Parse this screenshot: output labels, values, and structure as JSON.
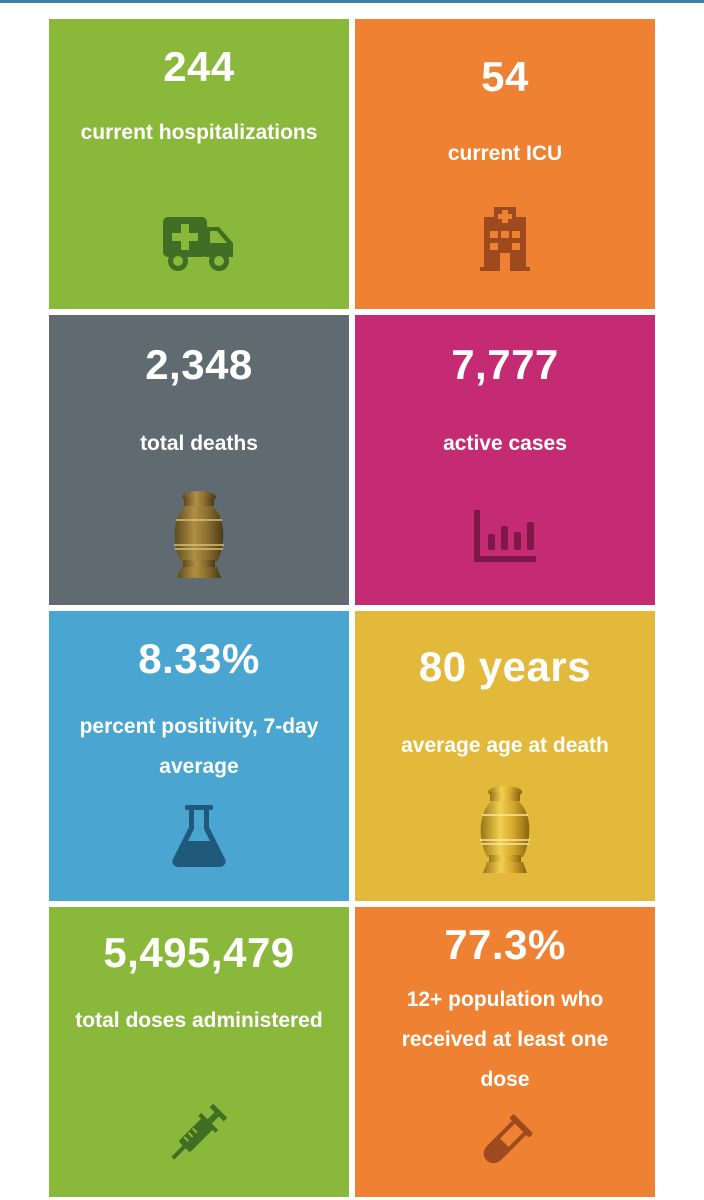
{
  "colors": {
    "green": "#8ab83a",
    "orange": "#ee8232",
    "gray": "#606a71",
    "magenta": "#c42b72",
    "blue": "#4aa6d0",
    "yellow": "#e3b93b",
    "green_icon": "#3f6e24",
    "orange_icon": "#9c4a1e",
    "magenta_icon": "#7f1848",
    "blue_icon": "#1f5a7b",
    "yellow_icon": "#c79a2a"
  },
  "tiles": [
    {
      "value": "244",
      "label": "current hospitalizations",
      "icon": "ambulance-icon",
      "color": "#8ab83a"
    },
    {
      "value": "54",
      "label": "current ICU",
      "icon": "hospital-icon",
      "color": "#ee8232"
    },
    {
      "value": "2,348",
      "label": "total deaths",
      "icon": "urn-icon",
      "color": "#606a71"
    },
    {
      "value": "7,777",
      "label": "active cases",
      "icon": "bar-chart-icon",
      "color": "#c42b72"
    },
    {
      "value": "8.33%",
      "label": "percent positivity, 7-day average",
      "icon": "flask-icon",
      "color": "#4aa6d0"
    },
    {
      "value": "80 years",
      "label": "average age at death",
      "icon": "urn-icon",
      "color": "#e3b93b"
    },
    {
      "value": "5,495,479",
      "label": "total doses administered",
      "icon": "syringe-icon",
      "color": "#8ab83a"
    },
    {
      "value": "77.3%",
      "label": "12+ population who received at least one dose",
      "icon": "test-tube-icon",
      "color": "#ee8232"
    }
  ]
}
